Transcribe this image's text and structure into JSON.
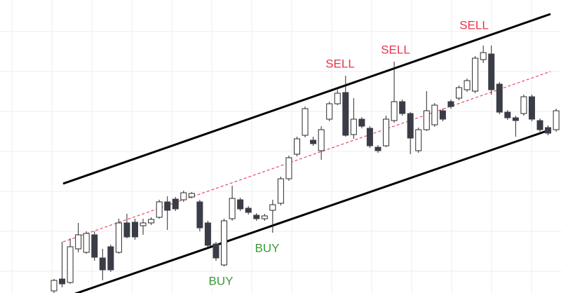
{
  "chart_data": {
    "type": "candlestick",
    "grid": true,
    "bull_color": "#ffffff",
    "bear_color": "#3a3d47",
    "wick_color": "#2a2a2a",
    "open": [
      3,
      20,
      15,
      63,
      58,
      83,
      50,
      66,
      58,
      100,
      101,
      96,
      100,
      108,
      130,
      134,
      133,
      137,
      130,
      100,
      70,
      40,
      106,
      133,
      121,
      111,
      106,
      118,
      128,
      163,
      198,
      225,
      218,
      203,
      248,
      270,
      286,
      226,
      248,
      235,
      208,
      210,
      246,
      273,
      256,
      203,
      233,
      240,
      260,
      273,
      278,
      290,
      288,
      333,
      341,
      298,
      258,
      250,
      256,
      280,
      246,
      236,
      233,
      262,
      248
    ],
    "high": [
      20,
      73,
      78,
      100,
      88,
      88,
      63,
      69,
      106,
      113,
      106,
      106,
      108,
      133,
      138,
      137,
      146,
      144,
      133,
      103,
      73,
      106,
      153,
      136,
      124,
      114,
      113,
      133,
      166,
      196,
      223,
      266,
      223,
      238,
      273,
      290,
      310,
      278,
      251,
      238,
      211,
      253,
      330,
      276,
      258,
      236,
      288,
      271,
      263,
      276,
      296,
      306,
      338,
      353,
      353,
      301,
      261,
      253,
      283,
      283,
      249,
      239,
      263,
      265,
      256
    ],
    "low": [
      0,
      8,
      13,
      58,
      56,
      46,
      18,
      30,
      56,
      78,
      76,
      83,
      97,
      106,
      90,
      117,
      130,
      135,
      88,
      65,
      46,
      38,
      103,
      117,
      112,
      103,
      103,
      86,
      125,
      160,
      195,
      222,
      210,
      190,
      245,
      268,
      223,
      220,
      235,
      207,
      200,
      208,
      243,
      253,
      198,
      200,
      231,
      237,
      245,
      263,
      275,
      287,
      285,
      328,
      283,
      255,
      247,
      223,
      253,
      245,
      230,
      225,
      230,
      245,
      245
    ],
    "close": [
      18,
      13,
      66,
      83,
      85,
      51,
      33,
      33,
      100,
      80,
      80,
      100,
      105,
      130,
      118,
      120,
      143,
      142,
      93,
      68,
      50,
      103,
      135,
      120,
      115,
      106,
      110,
      126,
      163,
      193,
      220,
      263,
      213,
      233,
      270,
      285,
      225,
      248,
      238,
      210,
      203,
      248,
      273,
      256,
      221,
      233,
      260,
      268,
      248,
      266,
      293,
      303,
      335,
      343,
      290,
      258,
      250,
      246,
      280,
      248,
      233,
      228,
      260,
      248,
      253
    ],
    "channel": {
      "upper": [
        156,
        398
      ],
      "middle": [
        73,
        316
      ],
      "lower": [
        -7,
        233
      ],
      "line_color": "#000000",
      "middle_color": "#e8466a"
    },
    "annotations": [
      {
        "text": "BUY",
        "color": "#3a9a3a"
      },
      {
        "text": "BUY",
        "color": "#3a9a3a"
      },
      {
        "text": "SELL",
        "color": "#e8334a"
      },
      {
        "text": "SELL",
        "color": "#e8334a"
      },
      {
        "text": "SELL",
        "color": "#e8334a"
      }
    ]
  }
}
